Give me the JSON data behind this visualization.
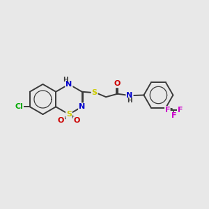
{
  "background_color": "#e8e8e8",
  "bond_color": "#3a3a3a",
  "atom_colors": {
    "S": "#cccc00",
    "N": "#0000cc",
    "O": "#cc0000",
    "Cl": "#00aa00",
    "F": "#cc00cc",
    "C": "#3a3a3a",
    "H": "#3a3a3a"
  },
  "font_size": 8.0,
  "bond_width": 1.4,
  "aromatic_lw": 0.9
}
